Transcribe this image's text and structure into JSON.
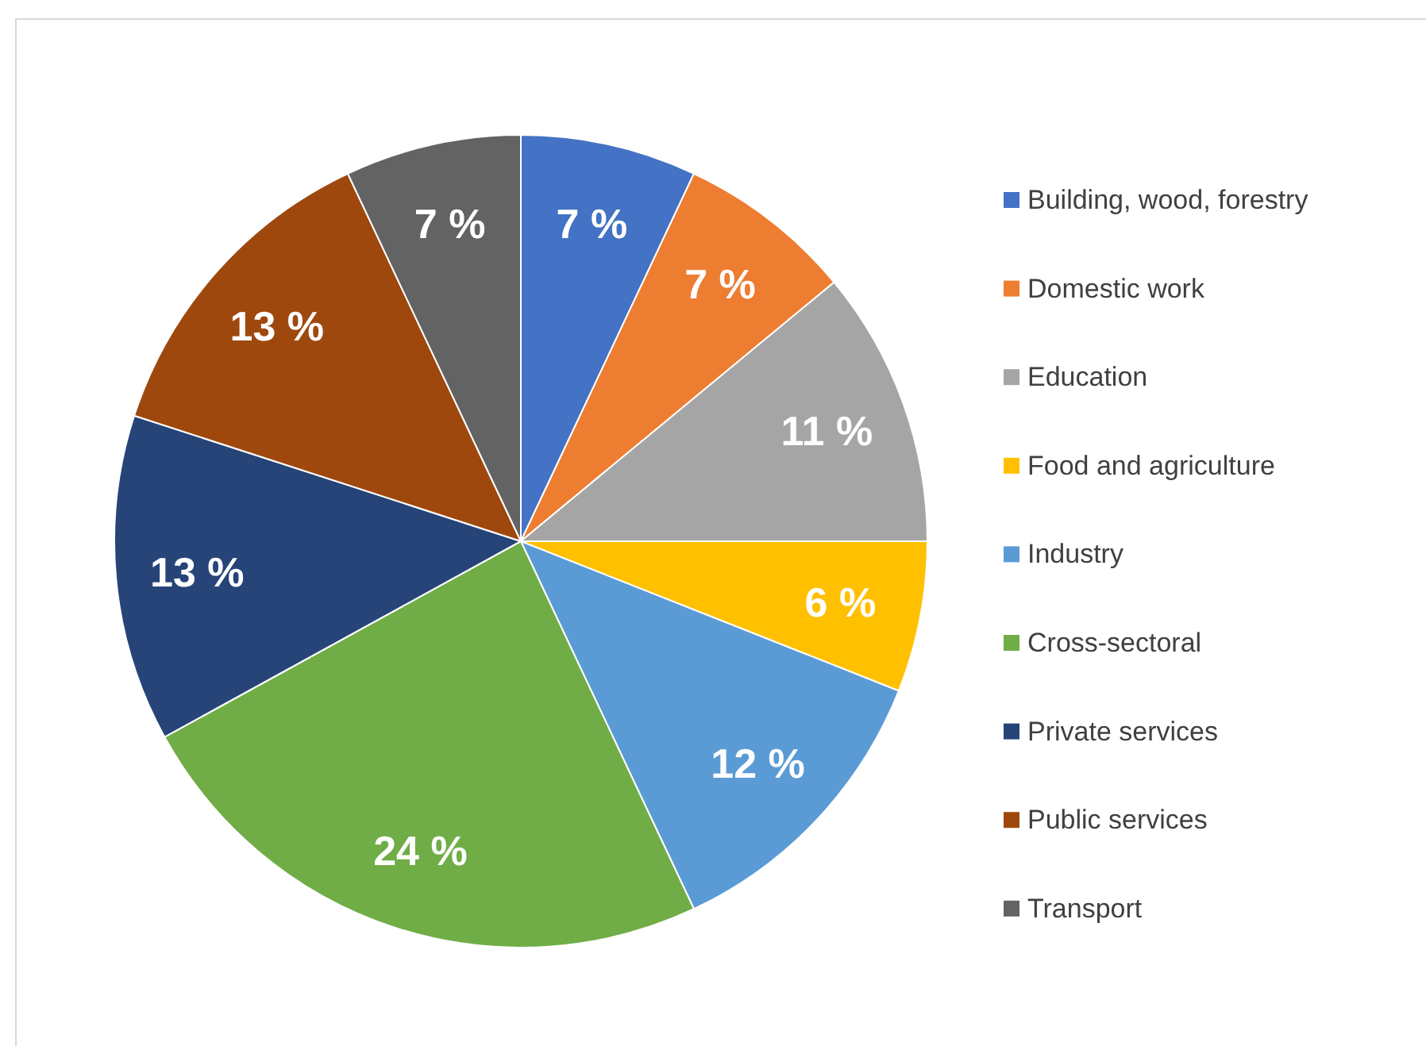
{
  "chart_data": {
    "type": "pie",
    "categories": [
      "Building, wood, forestry",
      "Domestic work",
      "Education",
      "Food and agriculture",
      "Industry",
      "Cross-sectoral",
      "Private services",
      "Public services",
      "Transport"
    ],
    "values": [
      7,
      7,
      11,
      6,
      12,
      24,
      13,
      13,
      7
    ],
    "value_labels": [
      "7 %",
      "7 %",
      "11 %",
      "6 %",
      "12 %",
      "24 %",
      "13 %",
      "13 %",
      "7 %"
    ],
    "colors": [
      "#4472c4",
      "#ed7d31",
      "#a5a5a5",
      "#ffc000",
      "#5b9bd5",
      "#70ad47",
      "#264478",
      "#9e480e",
      "#636363"
    ],
    "legend": "right"
  }
}
